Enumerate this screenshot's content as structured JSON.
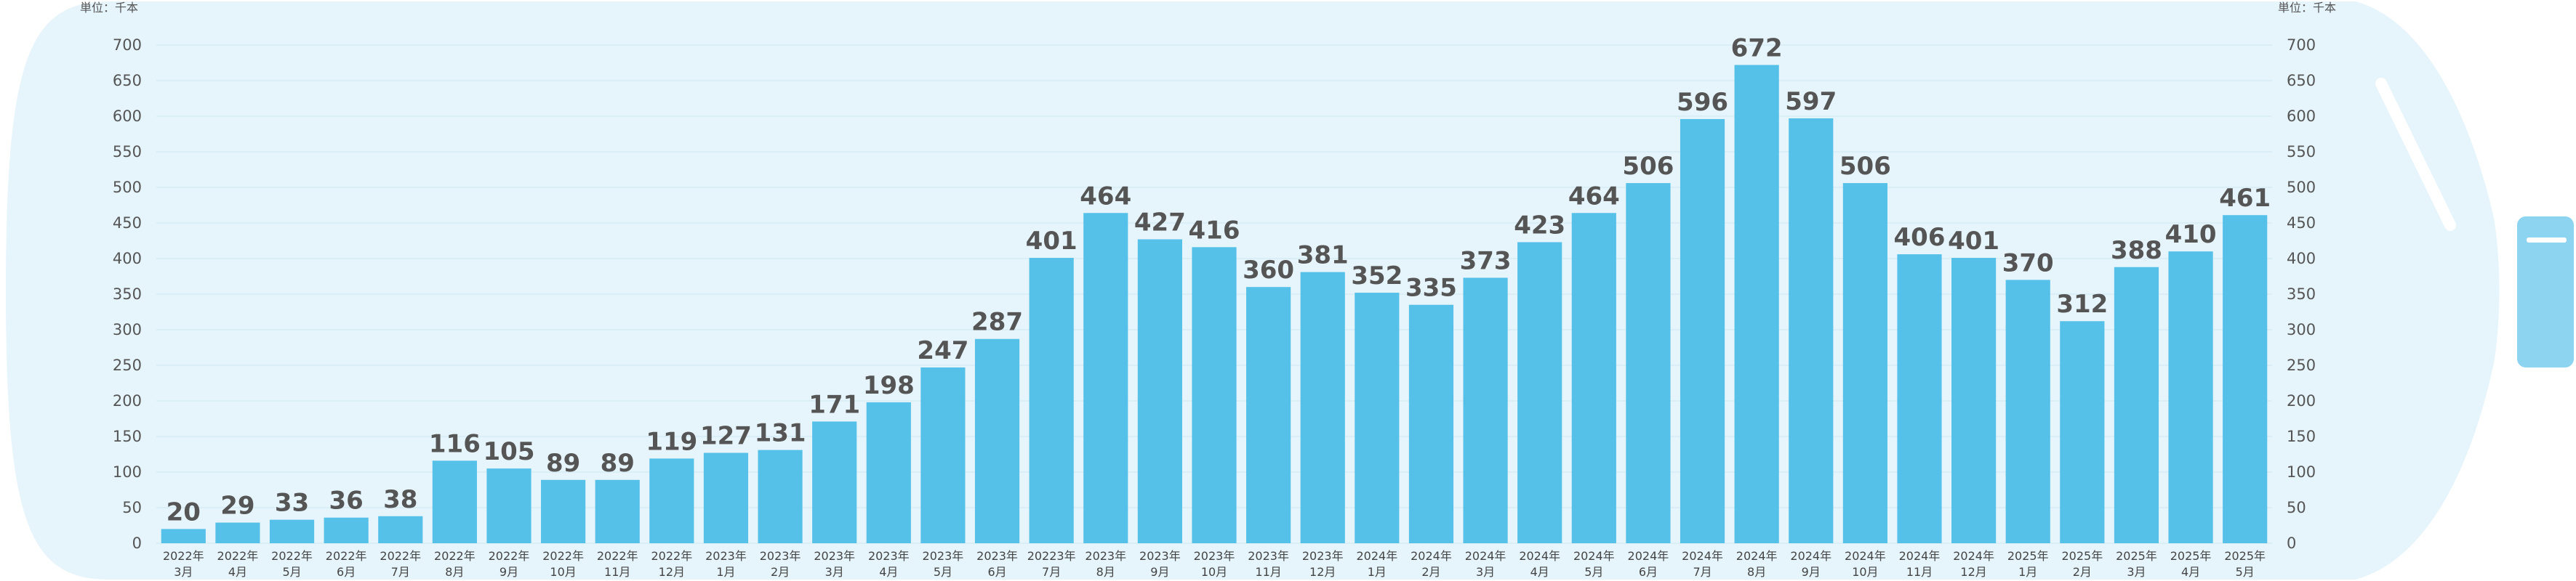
{
  "chart_data": {
    "type": "bar",
    "unit_label": "単位：千本",
    "categories": [
      [
        "2022年",
        "3月"
      ],
      [
        "2022年",
        "4月"
      ],
      [
        "2022年",
        "5月"
      ],
      [
        "2022年",
        "6月"
      ],
      [
        "2022年",
        "7月"
      ],
      [
        "2022年",
        "8月"
      ],
      [
        "2022年",
        "9月"
      ],
      [
        "2022年",
        "10月"
      ],
      [
        "2022年",
        "11月"
      ],
      [
        "2022年",
        "12月"
      ],
      [
        "2023年",
        "1月"
      ],
      [
        "2023年",
        "2月"
      ],
      [
        "2023年",
        "3月"
      ],
      [
        "2023年",
        "4月"
      ],
      [
        "2023年",
        "5月"
      ],
      [
        "2023年",
        "6月"
      ],
      [
        "20223年",
        "7月"
      ],
      [
        "2023年",
        "8月"
      ],
      [
        "2023年",
        "9月"
      ],
      [
        "2023年",
        "10月"
      ],
      [
        "2023年",
        "11月"
      ],
      [
        "2023年",
        "12月"
      ],
      [
        "2024年",
        "1月"
      ],
      [
        "2024年",
        "2月"
      ],
      [
        "2024年",
        "3月"
      ],
      [
        "2024年",
        "4月"
      ],
      [
        "2024年",
        "5月"
      ],
      [
        "2024年",
        "6月"
      ],
      [
        "2024年",
        "7月"
      ],
      [
        "2024年",
        "8月"
      ],
      [
        "2024年",
        "9月"
      ],
      [
        "2024年",
        "10月"
      ],
      [
        "2024年",
        "11月"
      ],
      [
        "2024年",
        "12月"
      ],
      [
        "2025年",
        "1月"
      ],
      [
        "2025年",
        "2月"
      ],
      [
        "2025年",
        "3月"
      ],
      [
        "2025年",
        "4月"
      ],
      [
        "2025年",
        "5月"
      ]
    ],
    "values": [
      20,
      29,
      33,
      36,
      38,
      116,
      105,
      89,
      89,
      119,
      127,
      131,
      171,
      198,
      247,
      287,
      401,
      464,
      427,
      416,
      360,
      381,
      352,
      335,
      373,
      423,
      464,
      506,
      596,
      672,
      597,
      506,
      406,
      401,
      370,
      312,
      388,
      410,
      461
    ],
    "ylim": [
      0,
      700
    ],
    "yticks": [
      0,
      50,
      100,
      150,
      200,
      250,
      300,
      350,
      400,
      450,
      500,
      550,
      600,
      650,
      700
    ],
    "grid": true,
    "legend": "none",
    "colors": {
      "bar": "#56c1e8",
      "background": "#e6f4fb",
      "cap": "#8dd4f0"
    }
  }
}
